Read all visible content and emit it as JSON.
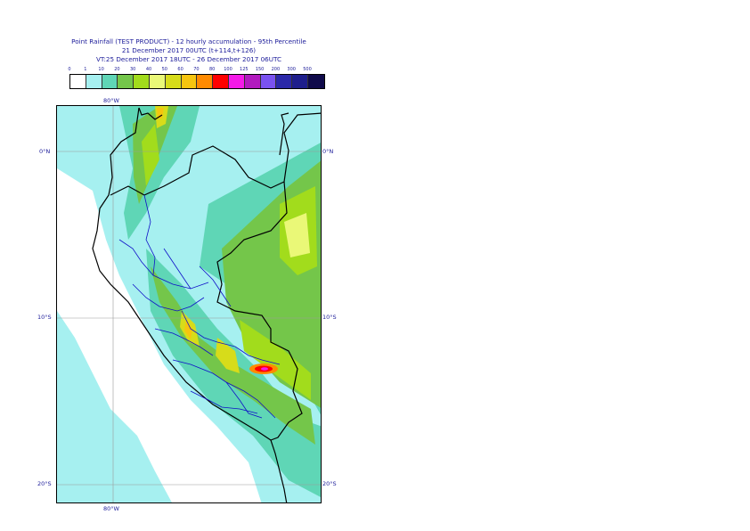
{
  "title": {
    "line1": "Point Rainfall (TEST PRODUCT) - 12 hourly accumulation - 95th Percentile",
    "line2": "21 December 2017 00UTC (t+114,t+126)",
    "line3": "VT:25 December 2017 18UTC - 26 December 2017 06UTC"
  },
  "legend": {
    "thresholds": [
      "0",
      "1",
      "10",
      "20",
      "30",
      "40",
      "50",
      "60",
      "70",
      "80",
      "100",
      "125",
      "150",
      "200",
      "300",
      "500"
    ],
    "colors": [
      "#ffffff",
      "#a6f0f0",
      "#5fd6b6",
      "#74c64a",
      "#a2dc1c",
      "#eaf877",
      "#d7dc1a",
      "#f6c50f",
      "#ff8a00",
      "#ff0000",
      "#f51ae8",
      "#b21abf",
      "#7a52f0",
      "#2b28a9",
      "#1e1e8c",
      "#0f0a4a"
    ]
  },
  "map": {
    "lon_labels": {
      "top": "80°W",
      "bottom": "80°W"
    },
    "lat_labels": [
      "0°N",
      "10°S",
      "20°S"
    ]
  }
}
